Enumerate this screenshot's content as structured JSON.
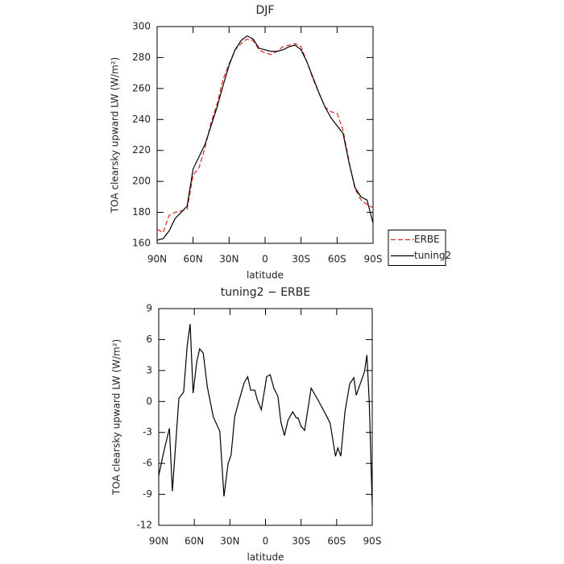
{
  "chart_data": [
    {
      "type": "line",
      "title": "DJF",
      "xlabel": "latitude",
      "ylabel": "TOA clearsky upward LW (W/m²)",
      "x": [
        90,
        85,
        80,
        75,
        70,
        65,
        60,
        55,
        50,
        45,
        40,
        35,
        30,
        25,
        20,
        15,
        10,
        5,
        0,
        -5,
        -10,
        -15,
        -20,
        -25,
        -30,
        -35,
        -40,
        -45,
        -50,
        -55,
        -60,
        -65,
        -70,
        -75,
        -80,
        -85,
        -90
      ],
      "series": [
        {
          "name": "ERBE",
          "color": "#e3261f",
          "dash": true,
          "values": [
            169,
            167,
            178,
            180,
            181,
            182,
            204,
            209,
            222,
            238,
            250,
            266,
            276,
            285,
            289,
            292,
            291,
            285,
            283,
            282,
            284,
            287,
            288,
            289,
            287,
            277,
            266,
            257,
            248,
            245,
            244,
            233,
            213,
            195,
            188,
            185,
            183
          ]
        },
        {
          "name": "tuning2",
          "color": "#000000",
          "dash": false,
          "values": [
            162,
            163,
            168,
            176,
            180,
            184,
            208,
            216,
            224,
            236,
            248,
            262,
            275,
            285,
            291,
            294,
            292,
            286,
            285,
            284,
            284,
            285,
            287,
            288,
            285,
            277,
            267,
            257,
            248,
            241,
            236,
            231,
            212,
            196,
            190,
            188,
            173
          ]
        }
      ],
      "xlim": [
        90,
        -90
      ],
      "xticks": [
        {
          "value": 90,
          "label": "90N"
        },
        {
          "value": 60,
          "label": "60N"
        },
        {
          "value": 30,
          "label": "30N"
        },
        0,
        {
          "value": -30,
          "label": "30S"
        },
        {
          "value": -60,
          "label": "60S"
        },
        {
          "value": -90,
          "label": "90S"
        }
      ],
      "ylim": [
        160,
        300
      ],
      "yticks": [
        160,
        180,
        200,
        220,
        240,
        260,
        280,
        300
      ],
      "legend": "right"
    },
    {
      "type": "line",
      "title": "tuning2 − ERBE",
      "xlabel": "latitude",
      "ylabel": "TOA clearsky upward LW (W/m²)",
      "x": [
        90,
        86,
        81,
        78.5,
        73,
        69,
        66,
        63.5,
        61,
        58,
        55.5,
        52.5,
        49,
        44,
        38.5,
        35,
        31.5,
        29,
        26,
        22.5,
        18,
        15,
        12.5,
        9,
        7,
        3.5,
        -1,
        -4,
        -7,
        -10.5,
        -13,
        -16,
        -19,
        -23,
        -26,
        -27.5,
        -30,
        -33,
        -38.5,
        -44.5,
        -51,
        -54.5,
        -59,
        -61,
        -63.5,
        -67,
        -71,
        -74.5,
        -76.5,
        -83.5,
        -85.5,
        -87.5,
        -90
      ],
      "series": [
        {
          "name": "tuning2 − ERBE",
          "color": "#000000",
          "dash": false,
          "values": [
            -7.2,
            -5,
            -2.6,
            -8.7,
            0.3,
            0.9,
            5.4,
            7.5,
            0.8,
            3.8,
            5.1,
            4.7,
            1.4,
            -1.5,
            -2.9,
            -9.2,
            -6,
            -5.2,
            -1.5,
            0,
            1.8,
            2.4,
            1.1,
            1.1,
            0.2,
            -0.8,
            2.4,
            2.6,
            1.3,
            0.5,
            -2,
            -3.3,
            -1.8,
            -1,
            -1.6,
            -1.6,
            -2.4,
            -2.8,
            1.3,
            0.1,
            -1.3,
            -2.1,
            -5.3,
            -4.5,
            -5.3,
            -1,
            1.7,
            2.3,
            0.6,
            2.9,
            4.5,
            -0.1,
            -10.1
          ]
        }
      ],
      "xlim": [
        90,
        -90
      ],
      "xticks": [
        {
          "value": 90,
          "label": "90N"
        },
        {
          "value": 60,
          "label": "60N"
        },
        {
          "value": 30,
          "label": "30N"
        },
        0,
        {
          "value": -30,
          "label": "30S"
        },
        {
          "value": -60,
          "label": "60S"
        },
        {
          "value": -90,
          "label": "90S"
        }
      ],
      "ylim": [
        -12,
        9
      ],
      "yticks": [
        -12,
        -9,
        -6,
        -3,
        0,
        3,
        6,
        9
      ]
    }
  ]
}
